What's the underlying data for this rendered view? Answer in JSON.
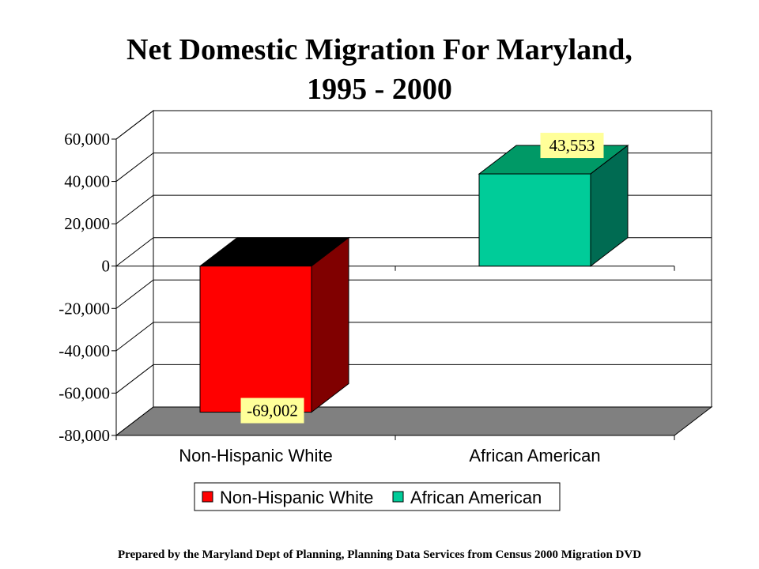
{
  "chart_data": {
    "type": "bar",
    "title": [
      "Net Domestic Migration For Maryland,",
      "1995 - 2000"
    ],
    "categories": [
      "Non-Hispanic White",
      "African American"
    ],
    "series": [
      {
        "name": "Non-Hispanic White",
        "values": [
          -69002,
          null
        ],
        "colors": {
          "front": "#ff0000",
          "top": "#000000",
          "side": "#800000"
        }
      },
      {
        "name": "African American",
        "values": [
          null,
          43553
        ],
        "colors": {
          "front": "#00cc99",
          "top": "#009966",
          "side": "#006b52"
        }
      }
    ],
    "data_labels": [
      "-69,002",
      "43,553"
    ],
    "ylim": [
      -80000,
      60000
    ],
    "yticks": [
      60000,
      40000,
      20000,
      0,
      -20000,
      -40000,
      -60000,
      -80000
    ],
    "ytick_labels": [
      "60,000",
      "40,000",
      "20,000",
      "0",
      "-20,000",
      "-40,000",
      "-60,000",
      "-80,000"
    ],
    "xlabel": "",
    "ylabel": "",
    "grid": true,
    "legend": "bottom",
    "floor_color": "#808080",
    "label_bg": "#ffff99"
  },
  "footer": "Prepared by the Maryland Dept of Planning, Planning Data Services from Census 2000 Migration DVD"
}
